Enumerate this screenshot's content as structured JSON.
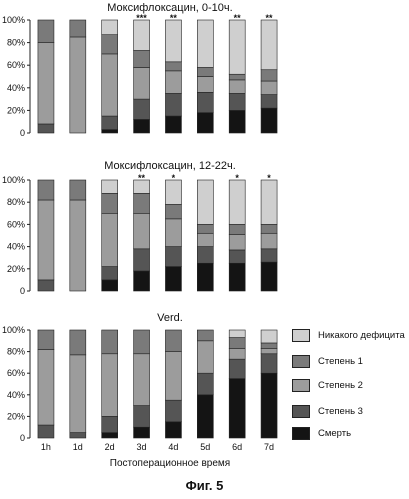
{
  "figure": {
    "caption": "Фиг. 5",
    "x_axis_title": "Постоперационное время"
  },
  "legend": [
    {
      "label": "Никакого дефицита",
      "color": "#cfcfcf"
    },
    {
      "label": "Степень 1",
      "color": "#7a7a7a"
    },
    {
      "label": "Степень 2",
      "color": "#9c9c9c"
    },
    {
      "label": "Степень 3",
      "color": "#555555"
    },
    {
      "label": "Смерть",
      "color": "#141414"
    }
  ],
  "chart_data": [
    {
      "type": "bar",
      "stacked": true,
      "title": "Моксифлоксацин, 0-10ч.",
      "categories": [
        "1h",
        "1d",
        "2d",
        "3d",
        "4d",
        "5d",
        "6d",
        "7d"
      ],
      "ylim": [
        0,
        100
      ],
      "ytick_labels": [
        "0",
        "20%",
        "40%",
        "60%",
        "80%",
        "100%"
      ],
      "show_category_labels": false,
      "series": [
        {
          "name": "Смерть",
          "values": [
            0,
            0,
            3,
            12,
            15,
            18,
            20,
            22
          ]
        },
        {
          "name": "Степень 3",
          "values": [
            8,
            0,
            12,
            18,
            20,
            18,
            15,
            12
          ]
        },
        {
          "name": "Степень 2",
          "values": [
            72,
            85,
            55,
            28,
            20,
            14,
            12,
            12
          ]
        },
        {
          "name": "Степень 1",
          "values": [
            20,
            15,
            17,
            15,
            8,
            8,
            5,
            10
          ]
        },
        {
          "name": "Никакого дефицита",
          "values": [
            0,
            0,
            13,
            27,
            37,
            42,
            48,
            44
          ]
        }
      ],
      "significance": [
        "",
        "",
        "",
        "***",
        "**",
        "",
        "**",
        "**"
      ]
    },
    {
      "type": "bar",
      "stacked": true,
      "title": "Моксифлоксацин, 12-22ч.",
      "categories": [
        "1h",
        "1d",
        "2d",
        "3d",
        "4d",
        "5d",
        "6d",
        "7d"
      ],
      "ylim": [
        0,
        100
      ],
      "ytick_labels": [
        "0",
        "20%",
        "40%",
        "60%",
        "80%",
        "100%"
      ],
      "show_category_labels": false,
      "series": [
        {
          "name": "Смерть",
          "values": [
            0,
            0,
            10,
            18,
            22,
            25,
            25,
            26
          ]
        },
        {
          "name": "Степень 3",
          "values": [
            10,
            0,
            12,
            20,
            18,
            15,
            12,
            12
          ]
        },
        {
          "name": "Степень 2",
          "values": [
            72,
            82,
            48,
            32,
            25,
            12,
            14,
            14
          ]
        },
        {
          "name": "Степень 1",
          "values": [
            18,
            18,
            18,
            18,
            13,
            8,
            9,
            8
          ]
        },
        {
          "name": "Никакого дефицита",
          "values": [
            0,
            0,
            12,
            12,
            22,
            40,
            40,
            40
          ]
        }
      ],
      "significance": [
        "",
        "",
        "",
        "**",
        "*",
        "",
        "*",
        "*"
      ]
    },
    {
      "type": "bar",
      "stacked": true,
      "title": "Verd.",
      "categories": [
        "1h",
        "1d",
        "2d",
        "3d",
        "4d",
        "5d",
        "6d",
        "7d"
      ],
      "ylim": [
        0,
        100
      ],
      "ytick_labels": [
        "0",
        "20%",
        "40%",
        "60%",
        "80%",
        "100%"
      ],
      "show_category_labels": true,
      "series": [
        {
          "name": "Смерть",
          "values": [
            0,
            0,
            5,
            10,
            15,
            40,
            55,
            60
          ]
        },
        {
          "name": "Степень 3",
          "values": [
            12,
            5,
            15,
            20,
            20,
            20,
            18,
            18
          ]
        },
        {
          "name": "Степень 2",
          "values": [
            70,
            72,
            58,
            48,
            45,
            30,
            10,
            5
          ]
        },
        {
          "name": "Степень 1",
          "values": [
            18,
            23,
            22,
            22,
            20,
            10,
            10,
            5
          ]
        },
        {
          "name": "Никакого дефицита",
          "values": [
            0,
            0,
            0,
            0,
            0,
            0,
            7,
            12
          ]
        }
      ],
      "significance": [
        "",
        "",
        "",
        "",
        "",
        "",
        "",
        ""
      ]
    }
  ]
}
